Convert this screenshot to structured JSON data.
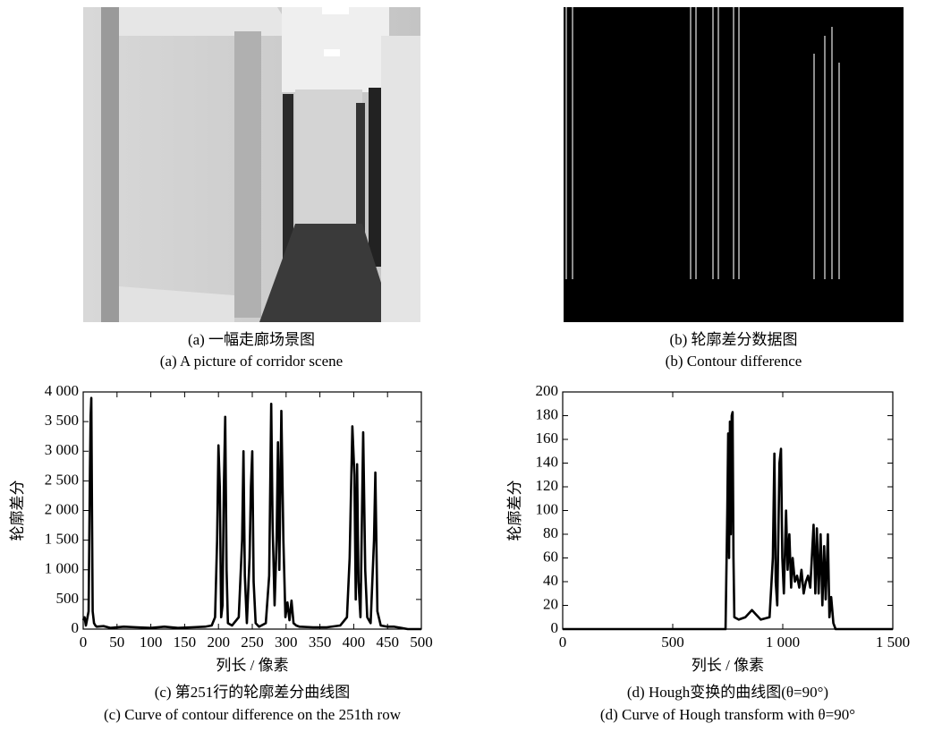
{
  "images": [
    {
      "caption_cn": "(a)  一幅走廊场景图",
      "caption_en": "(a)  A picture of corridor scene"
    },
    {
      "caption_cn": "(b)  轮廓差分数据图",
      "caption_en": "(b)  Contour difference"
    }
  ],
  "chart_data": [
    {
      "type": "line",
      "color": "#000000",
      "xlabel": "列长 / 像素",
      "ylabel": "轮廓差分",
      "caption_cn": "(c)  第251行的轮廓差分曲线图",
      "caption_en": "(c)  Curve of contour difference on the 251th row",
      "xlim": [
        0,
        500
      ],
      "xticks": [
        0,
        50,
        100,
        150,
        200,
        250,
        300,
        350,
        400,
        450,
        500
      ],
      "ylim": [
        0,
        4000
      ],
      "yticks": [
        0,
        500,
        {
          "value": 1000,
          "label": "1 000"
        },
        {
          "value": 1500,
          "label": "1 500"
        },
        {
          "value": 2000,
          "label": "2 000"
        },
        {
          "value": 2500,
          "label": "2 500"
        },
        {
          "value": 3000,
          "label": "3 000"
        },
        {
          "value": 3500,
          "label": "3 500"
        },
        {
          "value": 4000,
          "label": "4 000"
        }
      ],
      "x": [
        0,
        2,
        4,
        6,
        8,
        10,
        11,
        12,
        13,
        14,
        16,
        18,
        20,
        30,
        40,
        60,
        80,
        100,
        120,
        140,
        160,
        180,
        190,
        195,
        198,
        200,
        202,
        204,
        206,
        208,
        210,
        212,
        214,
        220,
        230,
        235,
        237,
        239,
        242,
        246,
        248,
        250,
        252,
        255,
        260,
        270,
        275,
        278,
        280,
        283,
        286,
        288,
        290,
        293,
        296,
        299,
        302,
        305,
        308,
        311,
        315,
        320,
        340,
        360,
        380,
        390,
        394,
        398,
        401,
        403,
        405,
        407,
        410,
        414,
        417,
        420,
        425,
        430,
        432,
        435,
        440,
        450,
        460,
        470,
        480,
        500
      ],
      "values": [
        150,
        200,
        60,
        180,
        300,
        2700,
        3600,
        3900,
        2000,
        300,
        100,
        60,
        40,
        50,
        20,
        40,
        30,
        20,
        40,
        20,
        30,
        40,
        60,
        200,
        1500,
        3100,
        2400,
        200,
        400,
        2400,
        3580,
        1000,
        100,
        60,
        200,
        1500,
        3000,
        900,
        100,
        1200,
        2400,
        3000,
        800,
        100,
        40,
        100,
        900,
        3800,
        1800,
        400,
        1500,
        3150,
        1000,
        3680,
        1500,
        200,
        450,
        150,
        480,
        100,
        60,
        40,
        30,
        30,
        60,
        200,
        1200,
        3420,
        2600,
        500,
        2780,
        800,
        200,
        3320,
        1000,
        200,
        100,
        1500,
        2640,
        300,
        60,
        40,
        40,
        20,
        0,
        0
      ]
    },
    {
      "type": "line",
      "color": "#000000",
      "xlabel": "列长 / 像素",
      "ylabel": "轮廓差分",
      "caption_cn": "(d)  Hough变换的曲线图(θ=90°)",
      "caption_en": "(d)  Curve of Hough transform with θ=90°",
      "xlim": [
        0,
        1500
      ],
      "xticks": [
        0,
        500,
        {
          "value": 1000,
          "label": "1 000"
        },
        {
          "value": 1500,
          "label": "1 500"
        }
      ],
      "ylim": [
        0,
        200
      ],
      "yticks": [
        0,
        20,
        40,
        60,
        80,
        100,
        120,
        140,
        160,
        180,
        200
      ],
      "x": [
        0,
        700,
        740,
        748,
        752,
        756,
        760,
        764,
        768,
        772,
        776,
        780,
        800,
        830,
        860,
        880,
        900,
        940,
        955,
        962,
        968,
        975,
        985,
        992,
        998,
        1005,
        1015,
        1022,
        1030,
        1038,
        1045,
        1055,
        1065,
        1075,
        1085,
        1095,
        1105,
        1115,
        1125,
        1140,
        1148,
        1155,
        1163,
        1172,
        1180,
        1188,
        1195,
        1205,
        1212,
        1220,
        1230,
        1240,
        1500
      ],
      "values": [
        0,
        0,
        0,
        100,
        165,
        60,
        175,
        80,
        180,
        183,
        60,
        10,
        8,
        10,
        16,
        12,
        8,
        10,
        60,
        148,
        40,
        20,
        140,
        152,
        60,
        30,
        100,
        50,
        80,
        35,
        60,
        40,
        45,
        35,
        50,
        30,
        40,
        45,
        35,
        88,
        30,
        85,
        30,
        80,
        20,
        70,
        25,
        80,
        10,
        27,
        5,
        0,
        0
      ]
    }
  ]
}
